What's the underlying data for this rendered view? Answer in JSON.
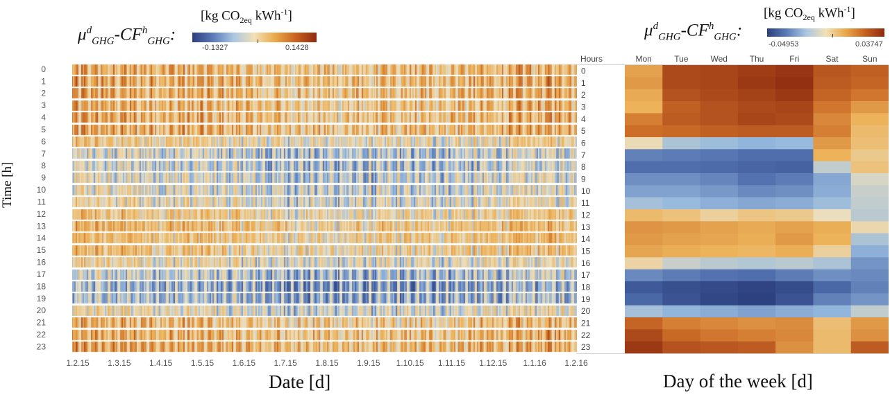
{
  "chart_data": [
    {
      "type": "heatmap",
      "xlabel": "Date [d]",
      "ylabel": "Time [h]",
      "colorbar": {
        "label_prefix": "µ",
        "label_unit": "[kg CO2eq kWh-1]",
        "min": -0.1327,
        "max": 0.1428,
        "min_label": "-0.1327",
        "max_label": "0.1428"
      },
      "x_tick_labels": [
        "1.2.15",
        "1.3.15",
        "1.4.15",
        "1.5.15",
        "1.6.15",
        "1.7.15",
        "1.8.15",
        "1.9.15",
        "1.10.15",
        "1.11.15",
        "1.12.15",
        "1.1.16",
        "1.2.16"
      ],
      "y_tick_labels": [
        "0",
        "1",
        "2",
        "3",
        "4",
        "5",
        "6",
        "7",
        "8",
        "9",
        "10",
        "11",
        "12",
        "13",
        "14",
        "15",
        "16",
        "17",
        "18",
        "19",
        "20",
        "21",
        "22",
        "23"
      ],
      "grid": false
    },
    {
      "type": "heatmap",
      "xlabel": "Day of the week [d]",
      "ylabel": "Hours",
      "colorbar": {
        "label_prefix": "µ",
        "label_unit": "[kg CO2eq kWh-1]",
        "min": -0.04953,
        "max": 0.03747,
        "min_label": "-0.04953",
        "max_label": "0.03747"
      },
      "categories": [
        "Mon",
        "Tue",
        "Wed",
        "Thu",
        "Fri",
        "Sat",
        "Sun"
      ],
      "rows": [
        "0",
        "1",
        "2",
        "3",
        "4",
        "5",
        "6",
        "7",
        "8",
        "9",
        "10",
        "11",
        "12",
        "13",
        "14",
        "15",
        "16",
        "17",
        "18",
        "19",
        "20",
        "21",
        "22",
        "23"
      ],
      "values": [
        [
          0.01,
          0.03,
          0.031,
          0.033,
          0.035,
          0.027,
          0.025
        ],
        [
          0.012,
          0.03,
          0.031,
          0.034,
          0.036,
          0.026,
          0.024
        ],
        [
          0.008,
          0.028,
          0.03,
          0.032,
          0.034,
          0.024,
          0.02
        ],
        [
          0.006,
          0.025,
          0.028,
          0.03,
          0.031,
          0.02,
          0.012
        ],
        [
          0.018,
          0.026,
          0.028,
          0.031,
          0.03,
          0.016,
          0.006
        ],
        [
          0.022,
          0.023,
          0.025,
          0.026,
          0.026,
          0.018,
          0.004
        ],
        [
          -0.005,
          -0.015,
          -0.017,
          -0.019,
          -0.018,
          0.012,
          0.003
        ],
        [
          -0.03,
          -0.031,
          -0.032,
          -0.034,
          -0.034,
          0.006,
          0.0
        ],
        [
          -0.034,
          -0.034,
          -0.035,
          -0.037,
          -0.038,
          -0.012,
          0.002
        ],
        [
          -0.027,
          -0.027,
          -0.029,
          -0.033,
          -0.031,
          -0.022,
          -0.009
        ],
        [
          -0.023,
          -0.023,
          -0.025,
          -0.028,
          -0.027,
          -0.021,
          -0.011
        ],
        [
          -0.016,
          -0.018,
          -0.02,
          -0.022,
          -0.021,
          -0.017,
          -0.012
        ],
        [
          0.004,
          0.002,
          -0.002,
          0.001,
          0.0,
          -0.006,
          -0.013
        ],
        [
          0.013,
          0.012,
          0.01,
          0.008,
          0.01,
          0.007,
          -0.004
        ],
        [
          0.012,
          0.01,
          0.009,
          0.007,
          0.012,
          0.006,
          -0.015
        ],
        [
          0.009,
          0.007,
          0.006,
          0.005,
          0.007,
          -0.002,
          -0.02
        ],
        [
          -0.003,
          -0.011,
          -0.013,
          -0.014,
          -0.013,
          -0.015,
          -0.026
        ],
        [
          -0.028,
          -0.031,
          -0.033,
          -0.034,
          -0.031,
          -0.027,
          -0.028
        ],
        [
          -0.041,
          -0.044,
          -0.046,
          -0.048,
          -0.045,
          -0.036,
          -0.03
        ],
        [
          -0.036,
          -0.043,
          -0.047,
          -0.049,
          -0.043,
          -0.03,
          -0.026
        ],
        [
          -0.016,
          -0.019,
          -0.021,
          -0.023,
          -0.021,
          -0.019,
          -0.012
        ],
        [
          0.024,
          0.018,
          0.016,
          0.014,
          0.015,
          0.003,
          0.012
        ],
        [
          0.03,
          0.023,
          0.02,
          0.018,
          0.016,
          0.004,
          0.014
        ],
        [
          0.034,
          0.028,
          0.027,
          0.026,
          0.014,
          0.004,
          0.026
        ]
      ],
      "grid": false
    }
  ]
}
